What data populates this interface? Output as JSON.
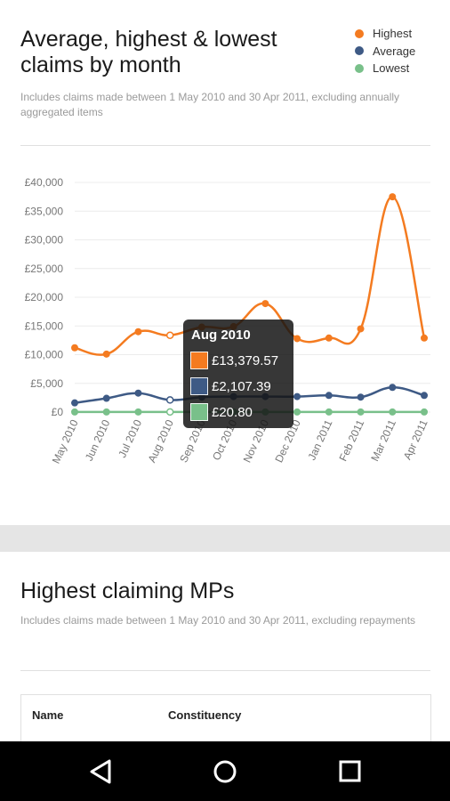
{
  "section1": {
    "title": "Average, highest & lowest claims by month",
    "subtitle": "Includes claims made between 1 May 2010 and 30 Apr 2011, excluding annually aggregated items"
  },
  "section2": {
    "title": "Highest claiming MPs",
    "subtitle": "Includes claims made between 1 May 2010 and 30 Apr 2011, excluding repayments",
    "table_headers": [
      "Name",
      "Constituency"
    ]
  },
  "legend": [
    {
      "name": "Highest",
      "color": "#f47b20"
    },
    {
      "name": "Average",
      "color": "#3e5a85"
    },
    {
      "name": "Lowest",
      "color": "#79c08a"
    }
  ],
  "tooltip": {
    "title": "Aug 2010",
    "rows": [
      {
        "value": "£13,379.57",
        "color": "#f47b20"
      },
      {
        "value": "£2,107.39",
        "color": "#3e5a85"
      },
      {
        "value": "£20.80",
        "color": "#79c08a"
      }
    ]
  },
  "chart_data": {
    "type": "line",
    "categories": [
      "May 2010",
      "Jun 2010",
      "Jul 2010",
      "Aug 2010",
      "Sep 2010",
      "Oct 2010",
      "Nov 2010",
      "Dec 2010",
      "Jan 2011",
      "Feb 2011",
      "Mar 2011",
      "Apr 2011"
    ],
    "series": [
      {
        "name": "Highest",
        "color": "#f47b20",
        "values": [
          11200,
          10100,
          14000,
          13379.57,
          14800,
          14900,
          18900,
          12800,
          12900,
          14500,
          37500,
          12900
        ]
      },
      {
        "name": "Average",
        "color": "#3e5a85",
        "values": [
          1600,
          2400,
          3300,
          2107.39,
          2600,
          2700,
          2700,
          2700,
          2900,
          2600,
          4300,
          2900
        ]
      },
      {
        "name": "Lowest",
        "color": "#79c08a",
        "values": [
          20,
          20,
          20,
          20.8,
          20,
          20,
          20,
          20,
          20,
          20,
          20,
          20
        ]
      }
    ],
    "highlighted_index": 3,
    "ylim": [
      0,
      40000
    ],
    "yticks": [
      0,
      5000,
      10000,
      15000,
      20000,
      25000,
      30000,
      35000,
      40000
    ],
    "ytick_labels": [
      "£0",
      "£5,000",
      "£10,000",
      "£15,000",
      "£20,000",
      "£25,000",
      "£30,000",
      "£35,000",
      "£40,000"
    ],
    "grid": true,
    "legend_position": "top-right"
  }
}
